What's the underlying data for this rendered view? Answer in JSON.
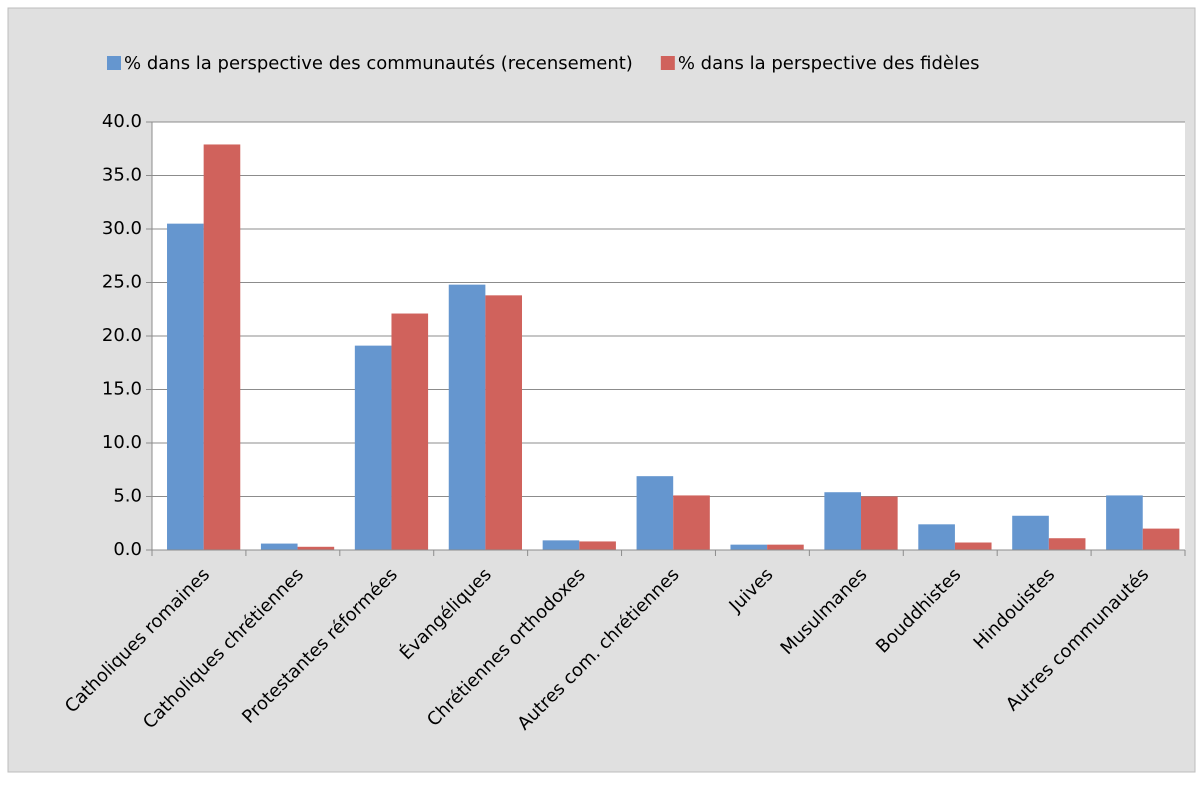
{
  "chart_data": {
    "type": "bar",
    "categories": [
      "Catholiques romaines",
      "Catholiques chrétiennes",
      "Protestantes réformées",
      "Évangéliques",
      "Chrétiennes orthodoxes",
      "Autres com. chrétiennes",
      "Juives",
      "Musulmanes",
      "Bouddhistes",
      "Hindouistes",
      "Autres communautés"
    ],
    "series": [
      {
        "name": "% dans la perspective des communautés (recensement)",
        "color": "#6596cf",
        "values": [
          30.5,
          0.6,
          19.1,
          24.8,
          0.9,
          6.9,
          0.5,
          5.4,
          2.4,
          3.2,
          5.1
        ]
      },
      {
        "name": "% dans la perspective des fidèles",
        "color": "#d0625c",
        "values": [
          37.9,
          0.3,
          22.1,
          23.8,
          0.8,
          5.1,
          0.5,
          5.0,
          0.7,
          1.1,
          2.0
        ]
      }
    ],
    "ylim": [
      0,
      40
    ],
    "yticks": [
      {
        "value": 0,
        "label": "0.0"
      },
      {
        "value": 5,
        "label": "5.0"
      },
      {
        "value": 10,
        "label": "10.0"
      },
      {
        "value": 15,
        "label": "15.0"
      },
      {
        "value": 20,
        "label": "20.0"
      },
      {
        "value": 25,
        "label": "25.0"
      },
      {
        "value": 30,
        "label": "30.0"
      },
      {
        "value": 35,
        "label": "35.0"
      },
      {
        "value": 40,
        "label": "40.0"
      }
    ],
    "grid": true,
    "legend": "top"
  }
}
